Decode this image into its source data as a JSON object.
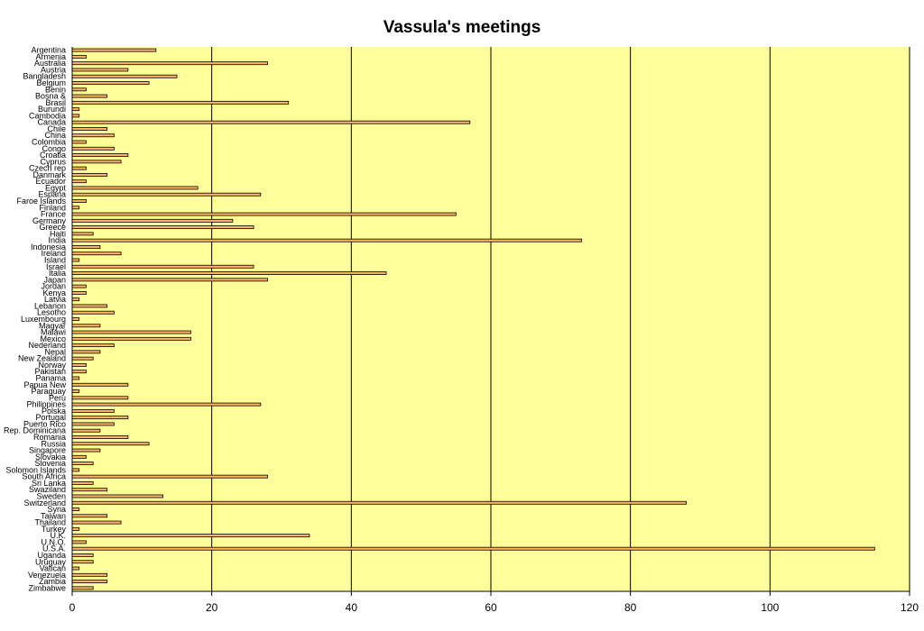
{
  "chart_data": {
    "type": "bar",
    "orientation": "horizontal",
    "title": "Vassula's meetings",
    "xlabel": "",
    "ylabel": "",
    "xlim": [
      0,
      120
    ],
    "x_ticks": [
      0,
      20,
      40,
      60,
      80,
      100,
      120
    ],
    "grid": "vertical major gridlines",
    "legend": "none",
    "colors": {
      "plot_background": "#ffff99",
      "bar_fill": "#ffb366",
      "bar_stroke": "#000000",
      "gridline": "#000000"
    },
    "categories": [
      "Argentina",
      "Armenia",
      "Australia",
      "Austria",
      "Bangladesh",
      "Belgium",
      "Benin",
      "Bosna &",
      "Brasil",
      "Burundi",
      "Cambodia",
      "Canada",
      "Chile",
      "China",
      "Colombia",
      "Congo",
      "Croatia",
      "Cyprus",
      "Czech rep",
      "Danmark",
      "Ecuador",
      "Egypt",
      "Espana",
      "Faroe Islands",
      "Finland",
      "France",
      "Germany",
      "Greece",
      "Haiti",
      "India",
      "Indonesia",
      "Ireland",
      "Island",
      "Israel",
      "Italia",
      "Japan",
      "Jordan",
      "Kenya",
      "Latvia",
      "Lebanon",
      "Lesotho",
      "Luxembourg",
      "Magyar",
      "Malawi",
      "Mexico",
      "Nederland",
      "Nepal",
      "New Zealand",
      "Norway",
      "Pakistan",
      "Panama",
      "Papua New",
      "Paraguay",
      "Peru",
      "Philippines",
      "Polska",
      "Portugal",
      "Puerto Rico",
      "Rep. Dominicana",
      "Romania",
      "Russia",
      "Singapore",
      "Slovakia",
      "Slovenia",
      "Solomon Islands",
      "South Africa",
      "Sri Lanka",
      "Swaziland",
      "Sweden",
      "Switzerland",
      "Syria",
      "Taiwan",
      "Thailand",
      "Turkey",
      "U.K.",
      "U.N.O.",
      "U.S.A.",
      "Uganda",
      "Uruguay",
      "Vatican",
      "Venezuela",
      "Zambia",
      "Zimbabwe"
    ],
    "values": [
      12,
      2,
      28,
      8,
      15,
      11,
      2,
      5,
      31,
      1,
      1,
      57,
      5,
      6,
      2,
      6,
      8,
      7,
      2,
      5,
      2,
      18,
      27,
      2,
      1,
      55,
      23,
      26,
      3,
      73,
      4,
      7,
      1,
      26,
      45,
      28,
      2,
      2,
      1,
      5,
      6,
      1,
      4,
      17,
      17,
      6,
      4,
      3,
      2,
      2,
      1,
      8,
      1,
      8,
      27,
      6,
      8,
      6,
      4,
      8,
      11,
      4,
      2,
      3,
      1,
      28,
      3,
      5,
      13,
      88,
      1,
      5,
      7,
      1,
      34,
      2,
      115,
      3,
      3,
      1,
      5,
      5,
      3
    ]
  }
}
